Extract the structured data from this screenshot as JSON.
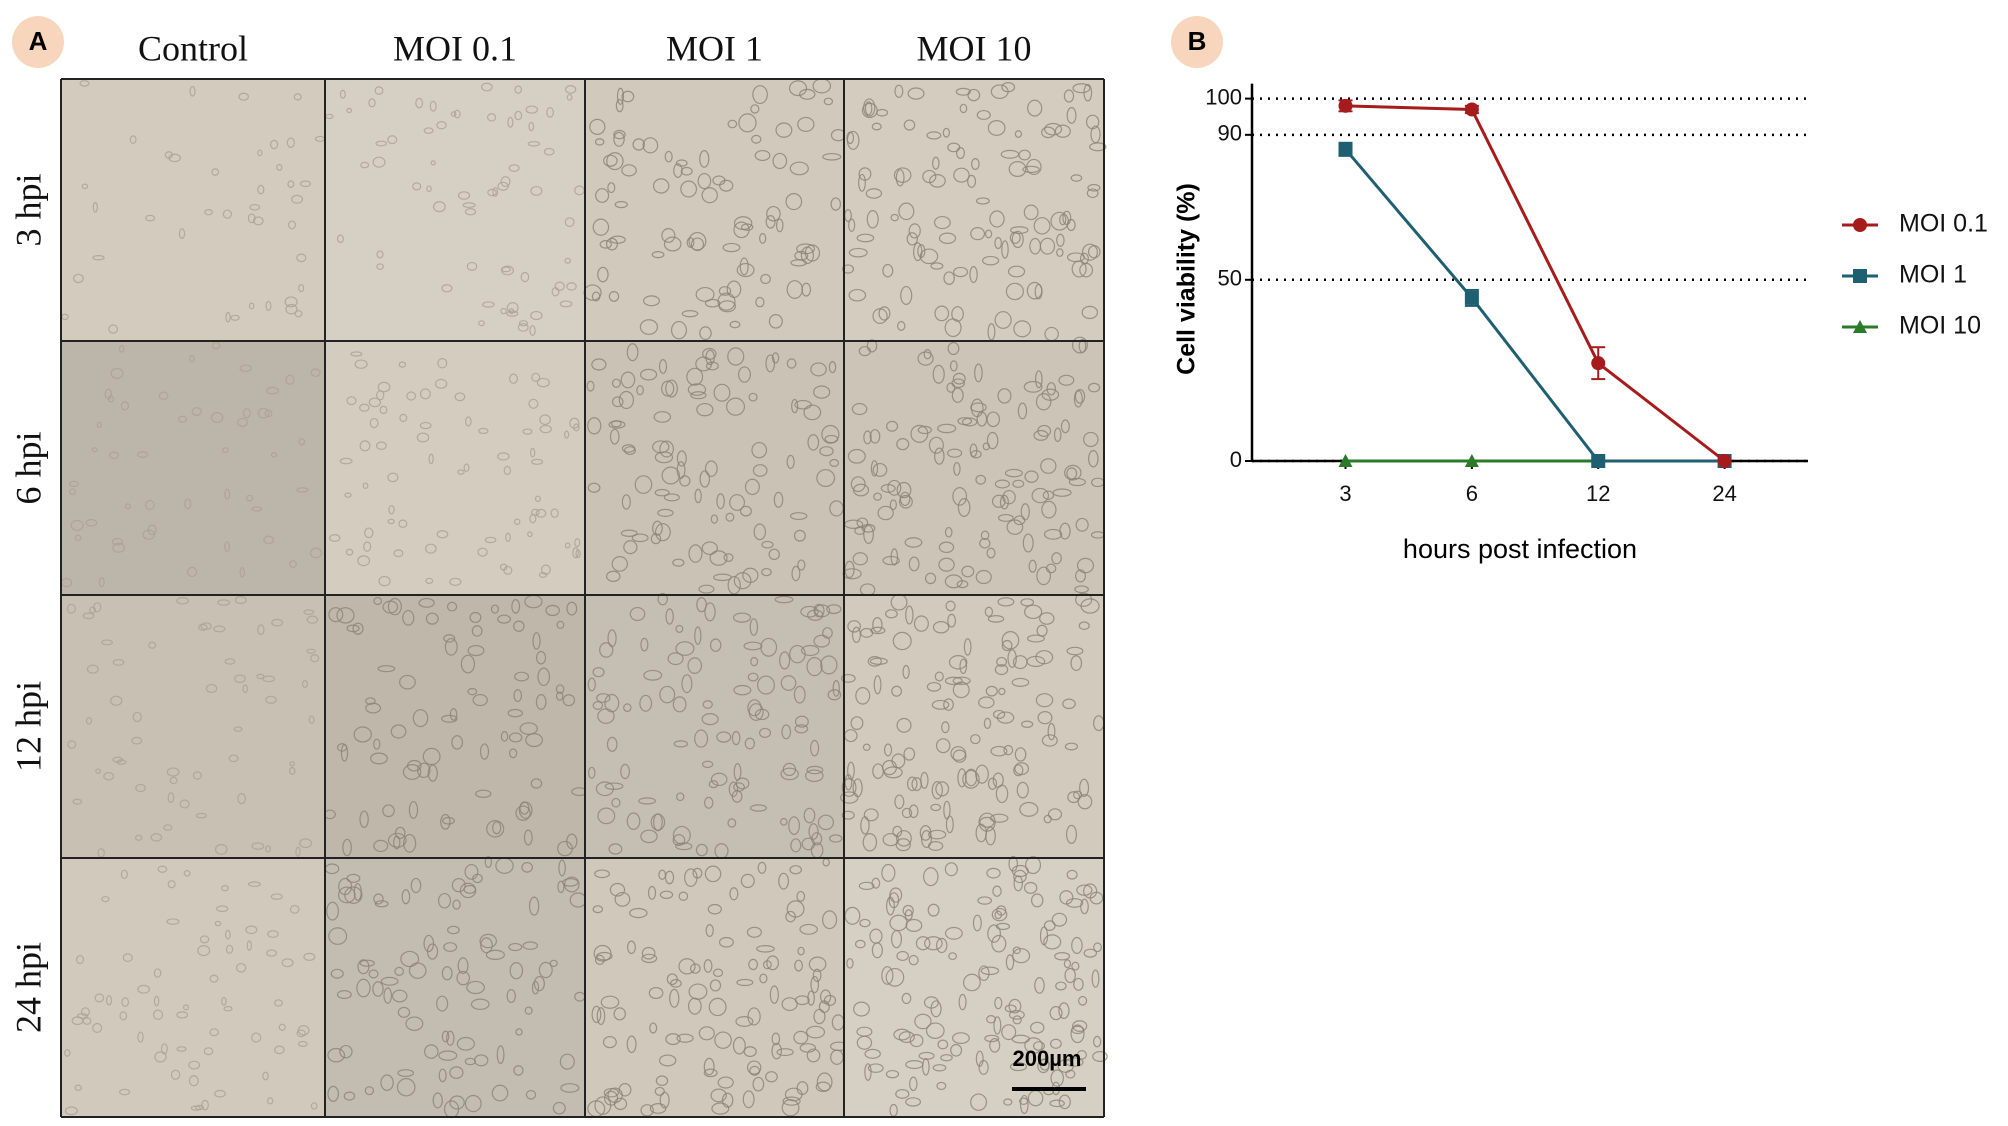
{
  "panel_a": {
    "label": "A",
    "columns": [
      "Control",
      "MOI 0.1",
      "MOI 1",
      "MOI 10"
    ],
    "rows": [
      "3 hpi",
      "6 hpi",
      "12 hpi",
      "24 hpi"
    ],
    "scale_bar": "200µm"
  },
  "chart_data": {
    "type": "line",
    "panel_label": "B",
    "y_label": "Cell viability (%)",
    "x_label": "hours post infection",
    "categories": [
      "3",
      "6",
      "12",
      "24"
    ],
    "series": [
      {
        "name": "MOI 0.1",
        "color": "#a61c1c",
        "marker": "circle",
        "values": [
          98,
          97,
          27,
          0
        ],
        "errors": [
          1.5,
          1,
          4.4,
          0
        ]
      },
      {
        "name": "MOI 1",
        "color": "#1f5f72",
        "marker": "square",
        "values": [
          86,
          45,
          0,
          0
        ],
        "errors": [
          1.8,
          2.2,
          0,
          0
        ]
      },
      {
        "name": "MOI 10",
        "color": "#2a7a2a",
        "marker": "triangle",
        "values": [
          0,
          0,
          0,
          0
        ],
        "errors": [
          0,
          0,
          0,
          0
        ]
      }
    ],
    "ylim": [
      0,
      100
    ],
    "yticks": [
      0,
      50,
      90,
      100
    ],
    "grid": true
  }
}
